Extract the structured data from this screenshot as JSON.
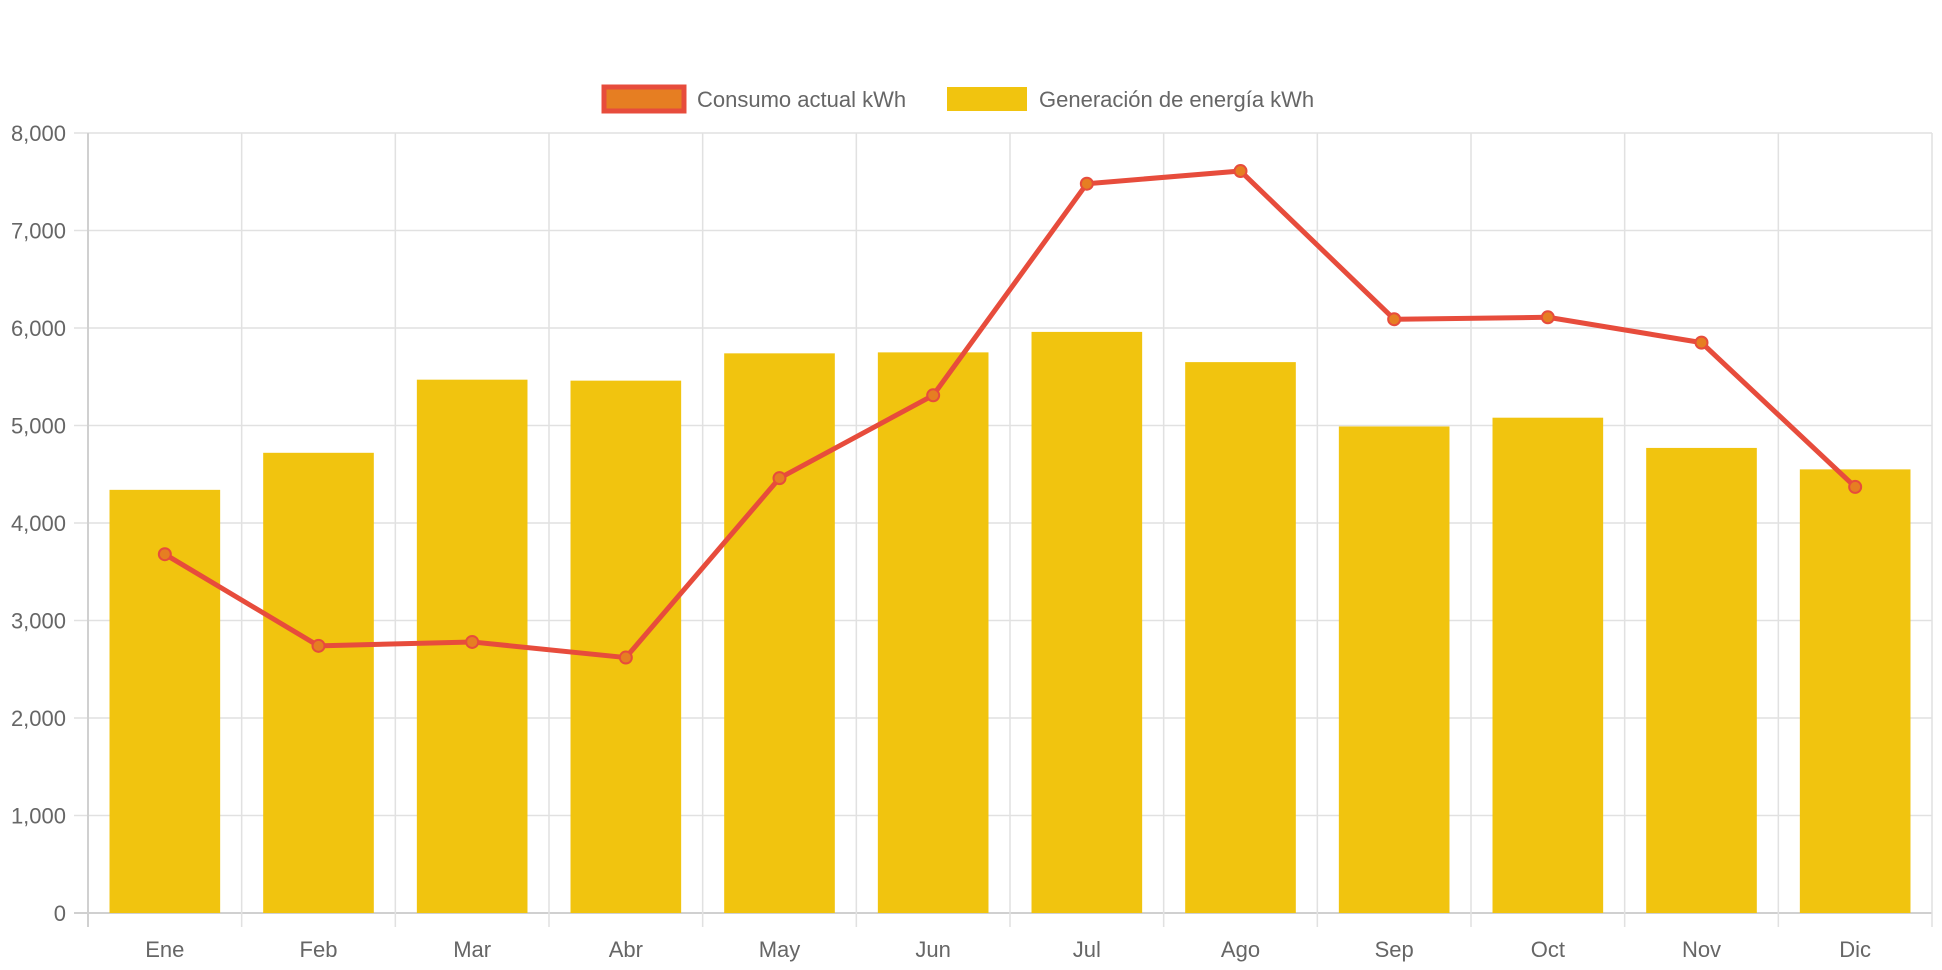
{
  "chart_data": {
    "type": "bar",
    "title": "",
    "xlabel": "",
    "ylabel": "",
    "categories": [
      "Ene",
      "Feb",
      "Mar",
      "Abr",
      "May",
      "Jun",
      "Jul",
      "Ago",
      "Sep",
      "Oct",
      "Nov",
      "Dic"
    ],
    "series": [
      {
        "name": "Consumo actual kWh",
        "type": "line",
        "line_color": "#e74c3c",
        "point_color": "#e67e22",
        "values": [
          3680,
          2740,
          2780,
          2620,
          4460,
          5310,
          7480,
          7610,
          6090,
          6110,
          5850,
          4370
        ]
      },
      {
        "name": "Generación de energía kWh",
        "type": "bar",
        "color": "#f1c40f",
        "values": [
          4340,
          4720,
          5470,
          5460,
          5740,
          5750,
          5960,
          5650,
          4990,
          5080,
          4770,
          4550
        ]
      }
    ],
    "ylim": [
      0,
      8000
    ],
    "y_ticks": [
      0,
      1000,
      2000,
      3000,
      4000,
      5000,
      6000,
      7000,
      8000
    ],
    "y_tick_labels": [
      "0",
      "1,000",
      "2,000",
      "3,000",
      "4,000",
      "5,000",
      "6,000",
      "7,000",
      "8,000"
    ],
    "grid": true,
    "legend_position": "top-center"
  }
}
